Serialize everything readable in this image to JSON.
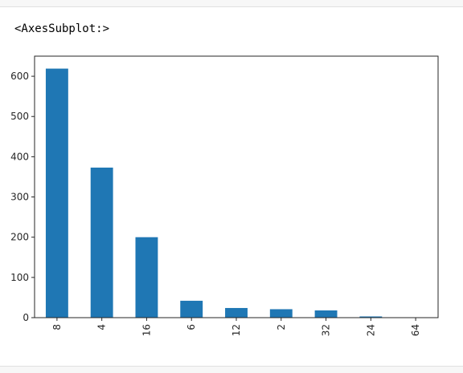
{
  "output": {
    "repr_text": "<AxesSubplot:>"
  },
  "colors": {
    "bar": "#1f77b4",
    "axis": "#262626",
    "cell_background": "#f7f7f7"
  },
  "chart_data": {
    "type": "bar",
    "categories": [
      "8",
      "4",
      "16",
      "6",
      "12",
      "2",
      "32",
      "24",
      "64"
    ],
    "values": [
      619,
      373,
      200,
      42,
      24,
      21,
      18,
      3,
      1
    ],
    "ylim": [
      0,
      650
    ],
    "yticks": [
      0,
      100,
      200,
      300,
      400,
      500,
      600
    ],
    "xtick_rotation": 90,
    "grid": false,
    "title": "",
    "xlabel": "",
    "ylabel": ""
  }
}
